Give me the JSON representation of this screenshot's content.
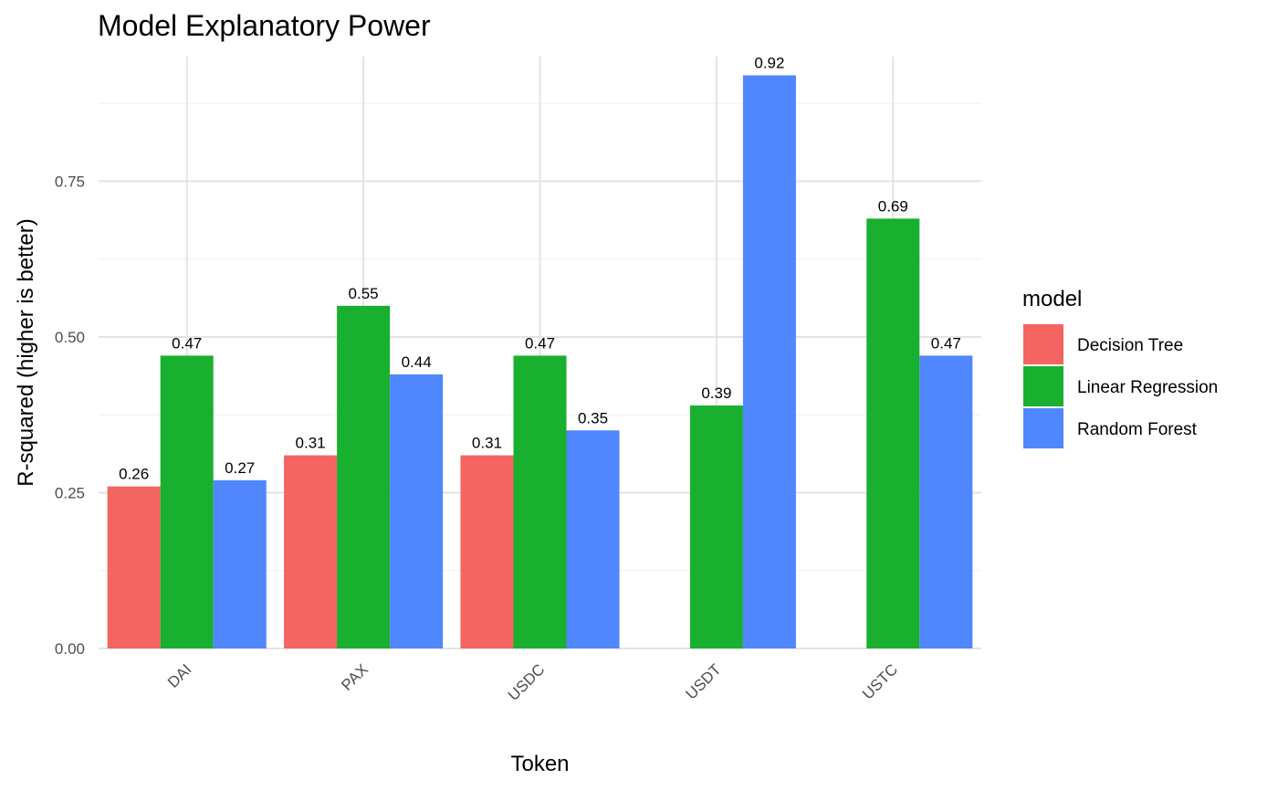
{
  "chart_data": {
    "type": "bar",
    "title": "Model Explanatory Power",
    "xlabel": "Token",
    "ylabel": "R-squared (higher is better)",
    "categories": [
      "DAI",
      "PAX",
      "USDC",
      "USDT",
      "USTC"
    ],
    "ylim": [
      0,
      0.95
    ],
    "yticks": [
      0.0,
      0.25,
      0.5,
      0.75
    ],
    "ytick_labels": [
      "0.00",
      "0.25",
      "0.50",
      "0.75"
    ],
    "grid": true,
    "legend": {
      "title": "model",
      "position": "right"
    },
    "series": [
      {
        "name": "Decision Tree",
        "color": "#F46461",
        "values": [
          0.26,
          0.31,
          0.31,
          null,
          null
        ],
        "labels": [
          "0.26",
          "0.31",
          "0.31",
          "",
          ""
        ]
      },
      {
        "name": "Linear Regression",
        "color": "#19B02F",
        "values": [
          0.47,
          0.55,
          0.47,
          0.39,
          0.69
        ],
        "labels": [
          "0.47",
          "0.55",
          "0.47",
          "0.39",
          "0.69"
        ]
      },
      {
        "name": "Random Forest",
        "color": "#5087FF",
        "values": [
          0.27,
          0.44,
          0.35,
          0.92,
          0.47
        ],
        "labels": [
          "0.27",
          "0.44",
          "0.35",
          "0.92",
          "0.47"
        ]
      }
    ]
  }
}
